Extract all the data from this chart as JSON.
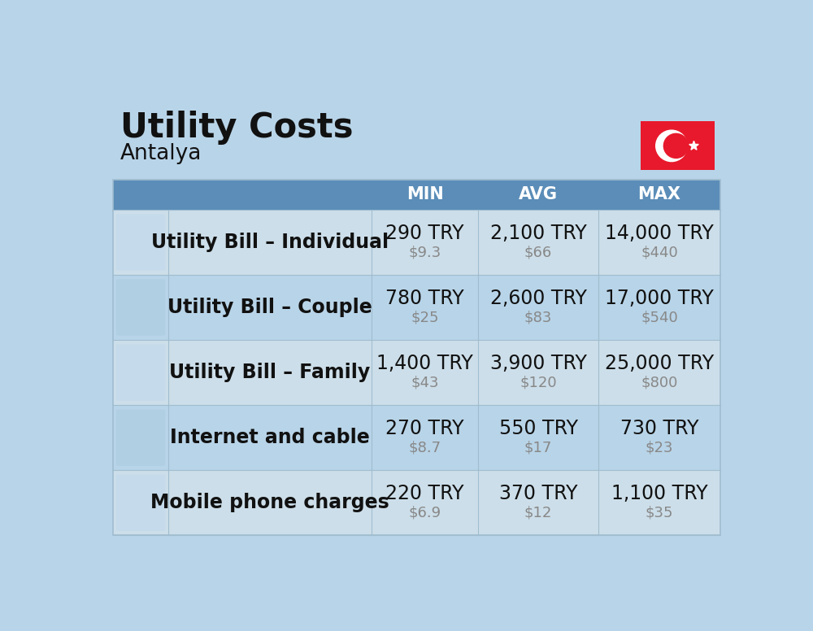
{
  "title": "Utility Costs",
  "subtitle": "Antalya",
  "background_color": "#b8d4e8",
  "header_color": "#5b8db8",
  "header_text_color": "#ffffff",
  "row_color_light": "#ccdee9",
  "row_color_dark": "#b8d4e8",
  "col_header_labels": [
    "MIN",
    "AVG",
    "MAX"
  ],
  "rows": [
    {
      "label": "Utility Bill – Individual",
      "min_try": "290 TRY",
      "min_usd": "$9.3",
      "avg_try": "2,100 TRY",
      "avg_usd": "$66",
      "max_try": "14,000 TRY",
      "max_usd": "$440"
    },
    {
      "label": "Utility Bill – Couple",
      "min_try": "780 TRY",
      "min_usd": "$25",
      "avg_try": "2,600 TRY",
      "avg_usd": "$83",
      "max_try": "17,000 TRY",
      "max_usd": "$540"
    },
    {
      "label": "Utility Bill – Family",
      "min_try": "1,400 TRY",
      "min_usd": "$43",
      "avg_try": "3,900 TRY",
      "avg_usd": "$120",
      "max_try": "25,000 TRY",
      "max_usd": "$800"
    },
    {
      "label": "Internet and cable",
      "min_try": "270 TRY",
      "min_usd": "$8.7",
      "avg_try": "550 TRY",
      "avg_usd": "$17",
      "max_try": "730 TRY",
      "max_usd": "$23"
    },
    {
      "label": "Mobile phone charges",
      "min_try": "220 TRY",
      "min_usd": "$6.9",
      "avg_try": "370 TRY",
      "avg_usd": "$12",
      "max_try": "1,100 TRY",
      "max_usd": "$35"
    }
  ],
  "flag_bg": "#e8192c",
  "title_fontsize": 30,
  "subtitle_fontsize": 19,
  "header_fontsize": 15,
  "try_fontsize": 17,
  "usd_fontsize": 13,
  "label_fontsize": 17,
  "divider_color": "#a0bdd0",
  "usd_color": "#888888",
  "text_color": "#111111"
}
